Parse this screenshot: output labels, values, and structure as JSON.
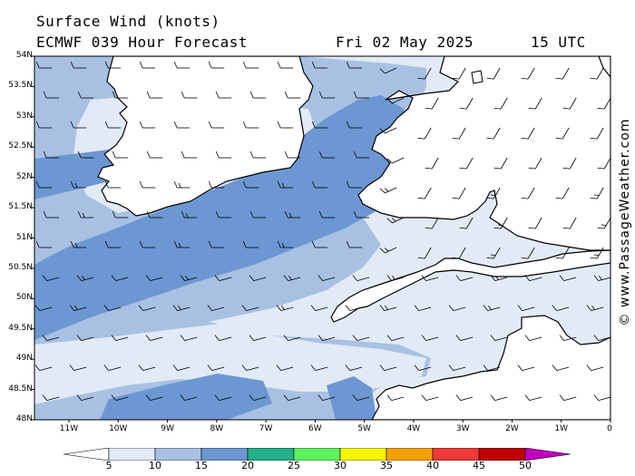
{
  "header": {
    "title": "Surface Wind (knots)",
    "model_run": "ECMWF 039 Hour Forecast",
    "date": "Fri 02 May 2025",
    "time": "15 UTC"
  },
  "credit": "© www.PassageWeather.com",
  "map": {
    "lat_labels": [
      "54N",
      "53.5N",
      "53N",
      "52.5N",
      "52N",
      "51.5N",
      "51N",
      "50.5N",
      "50N",
      "49.5N",
      "49N",
      "48.5N",
      "48N"
    ],
    "lon_labels": [
      "11W",
      "10W",
      "9W",
      "8W",
      "7W",
      "6W",
      "5W",
      "4W",
      "3W",
      "2W",
      "1W",
      "0"
    ],
    "lat_range": [
      48,
      54
    ],
    "lon_range": [
      -11.7,
      0
    ],
    "regions": [
      "Ireland",
      "Wales",
      "England",
      "Cornwall",
      "Brittany",
      "Cotentin"
    ]
  },
  "colorbar": {
    "labels": [
      "5",
      "10",
      "15",
      "20",
      "25",
      "30",
      "35",
      "40",
      "45",
      "50"
    ],
    "colors": [
      "#ffffff",
      "#e2eaf6",
      "#a8c1e3",
      "#6c97d2",
      "#23b08b",
      "#5ef25e",
      "#f5f500",
      "#f3a000",
      "#ee3a3a",
      "#c00000",
      "#c000c0"
    ]
  },
  "legend_colors": {
    "land": "#ffffff",
    "band_5_10": "#e2eaf6",
    "band_10_15": "#a8c1e3",
    "band_15_20": "#6c97d2",
    "coast": "#000000",
    "barb": "#000000"
  }
}
